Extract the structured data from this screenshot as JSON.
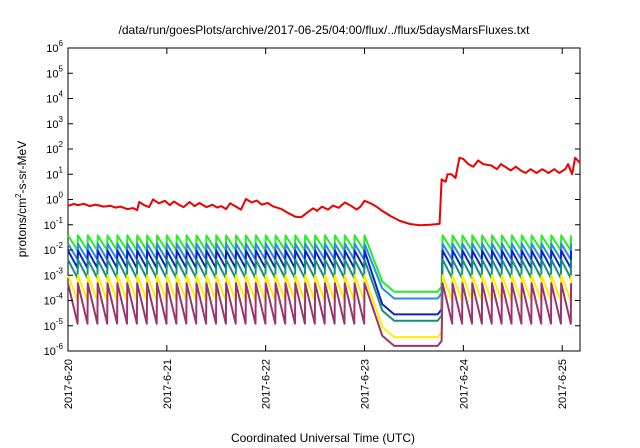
{
  "chart_data": {
    "type": "line",
    "title": "/data/run/goesPlots/archive/2017-06-25/04:00/flux/../flux/5daysMarsFluxes.txt",
    "xlabel": "Coordinated Universal Time (UTC)",
    "ylabel": "protons/cm2-s-sr-MeV",
    "ylabel_parts": [
      "protons/cm",
      "2",
      "-s-sr-MeV"
    ],
    "x_ticks": [
      "2017-6-20",
      "2017-6-21",
      "2017-6-22",
      "2017-6-23",
      "2017-6-24",
      "2017-6-25"
    ],
    "y_scale": "log",
    "ylim": [
      1e-06,
      1000000.0
    ],
    "y_ticks": [
      {
        "base": "10",
        "exp": "-6"
      },
      {
        "base": "10",
        "exp": "-5"
      },
      {
        "base": "10",
        "exp": "-4"
      },
      {
        "base": "10",
        "exp": "-3"
      },
      {
        "base": "10",
        "exp": "-2"
      },
      {
        "base": "10",
        "exp": "-1"
      },
      {
        "base": "10",
        "exp": "0"
      },
      {
        "base": "10",
        "exp": "1"
      },
      {
        "base": "10",
        "exp": "2"
      },
      {
        "base": "10",
        "exp": "3"
      },
      {
        "base": "10",
        "exp": "4"
      },
      {
        "base": "10",
        "exp": "5"
      },
      {
        "base": "10",
        "exp": "6"
      }
    ],
    "xlim_days": [
      0,
      5.18
    ],
    "grid": false,
    "legend": "none",
    "series": [
      {
        "color": "#ee0000",
        "points": [
          [
            0.0,
            -0.25
          ],
          [
            0.06,
            -0.18
          ],
          [
            0.1,
            -0.22
          ],
          [
            0.16,
            -0.17
          ],
          [
            0.22,
            -0.26
          ],
          [
            0.28,
            -0.2
          ],
          [
            0.36,
            -0.28
          ],
          [
            0.43,
            -0.25
          ],
          [
            0.48,
            -0.32
          ],
          [
            0.53,
            -0.28
          ],
          [
            0.6,
            -0.38
          ],
          [
            0.66,
            -0.34
          ],
          [
            0.7,
            -0.42
          ],
          [
            0.72,
            -0.1
          ],
          [
            0.78,
            -0.24
          ],
          [
            0.82,
            -0.3
          ],
          [
            0.86,
            0.0
          ],
          [
            0.92,
            -0.15
          ],
          [
            0.98,
            -0.05
          ],
          [
            1.03,
            -0.22
          ],
          [
            1.07,
            -0.08
          ],
          [
            1.12,
            -0.2
          ],
          [
            1.17,
            -0.3
          ],
          [
            1.23,
            -0.1
          ],
          [
            1.28,
            -0.26
          ],
          [
            1.33,
            -0.14
          ],
          [
            1.4,
            -0.3
          ],
          [
            1.46,
            -0.21
          ],
          [
            1.51,
            -0.32
          ],
          [
            1.55,
            -0.26
          ],
          [
            1.6,
            -0.38
          ],
          [
            1.64,
            -0.15
          ],
          [
            1.7,
            -0.28
          ],
          [
            1.75,
            -0.4
          ],
          [
            1.8,
            0.02
          ],
          [
            1.86,
            -0.12
          ],
          [
            1.91,
            -0.04
          ],
          [
            1.96,
            -0.2
          ],
          [
            2.02,
            -0.14
          ],
          [
            2.08,
            -0.28
          ],
          [
            2.16,
            -0.38
          ],
          [
            2.22,
            -0.52
          ],
          [
            2.3,
            -0.68
          ],
          [
            2.36,
            -0.7
          ],
          [
            2.42,
            -0.52
          ],
          [
            2.48,
            -0.35
          ],
          [
            2.52,
            -0.45
          ],
          [
            2.57,
            -0.28
          ],
          [
            2.63,
            -0.4
          ],
          [
            2.68,
            -0.24
          ],
          [
            2.74,
            -0.33
          ],
          [
            2.8,
            -0.12
          ],
          [
            2.86,
            -0.24
          ],
          [
            2.92,
            -0.4
          ],
          [
            2.96,
            -0.28
          ],
          [
            3.0,
            -0.05
          ],
          [
            3.06,
            -0.15
          ],
          [
            3.12,
            -0.28
          ],
          [
            3.18,
            -0.45
          ],
          [
            3.26,
            -0.65
          ],
          [
            3.36,
            -0.85
          ],
          [
            3.46,
            -0.97
          ],
          [
            3.56,
            -1.02
          ],
          [
            3.66,
            -1.0
          ],
          [
            3.72,
            -0.98
          ],
          [
            3.76,
            -0.96
          ],
          [
            3.78,
            0.8
          ],
          [
            3.82,
            0.7
          ],
          [
            3.84,
            1.0
          ],
          [
            3.88,
            1.0
          ],
          [
            3.92,
            0.85
          ],
          [
            3.96,
            1.65
          ],
          [
            4.0,
            1.6
          ],
          [
            4.05,
            1.4
          ],
          [
            4.1,
            1.3
          ],
          [
            4.15,
            1.55
          ],
          [
            4.2,
            1.4
          ],
          [
            4.28,
            1.35
          ],
          [
            4.34,
            1.2
          ],
          [
            4.38,
            1.4
          ],
          [
            4.44,
            1.25
          ],
          [
            4.48,
            1.15
          ],
          [
            4.53,
            1.3
          ],
          [
            4.58,
            1.15
          ],
          [
            4.63,
            1.05
          ],
          [
            4.68,
            1.2
          ],
          [
            4.74,
            1.05
          ],
          [
            4.8,
            1.2
          ],
          [
            4.86,
            1.05
          ],
          [
            4.92,
            1.2
          ],
          [
            4.97,
            1.05
          ],
          [
            5.03,
            1.2
          ],
          [
            5.06,
            1.4
          ],
          [
            5.1,
            1.0
          ],
          [
            5.13,
            1.65
          ],
          [
            5.18,
            1.45
          ]
        ]
      },
      {
        "color": "#22ee22",
        "top": -1.42,
        "bottom": -2.02,
        "gap_bottom": -3.65
      },
      {
        "color": "#2a8ce6",
        "top": -1.75,
        "bottom": -2.38,
        "gap_bottom": -3.92
      },
      {
        "color": "#0a24c8",
        "top": -2.02,
        "bottom": -2.72,
        "gap_bottom": -4.55
      },
      {
        "color": "#138f7c",
        "top": -2.38,
        "bottom": -3.12,
        "gap_bottom": -4.8
      },
      {
        "color": "#ffee00",
        "top": -3.0,
        "bottom": -4.0,
        "gap_bottom": -5.45
      },
      {
        "color": "#9b3570",
        "top": -3.32,
        "bottom": -4.92,
        "gap_bottom": -5.8
      }
    ],
    "sawtooth_period_days": 0.1,
    "data_gap_days": [
      3.0,
      3.78
    ]
  }
}
